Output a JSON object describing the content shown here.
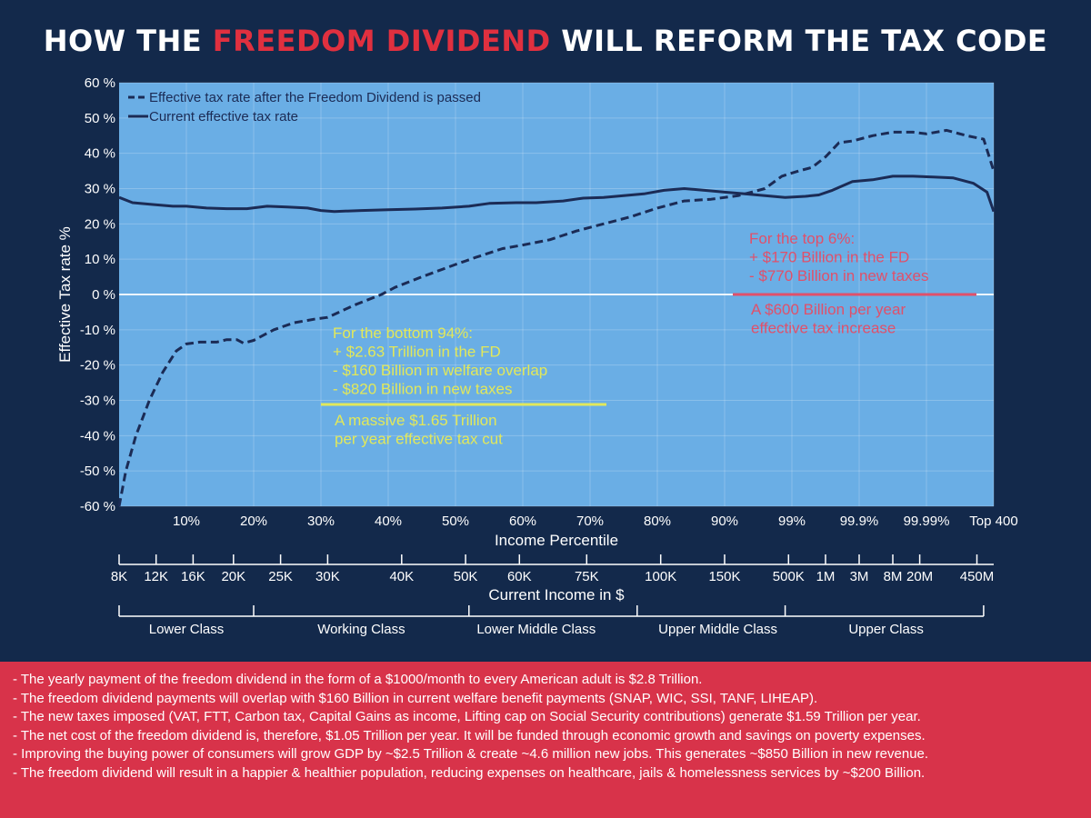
{
  "title": {
    "part1": "HOW THE ",
    "highlight": "FREEDOM DIVIDEND",
    "part2": " WILL REFORM THE TAX CODE"
  },
  "colors": {
    "background": "#13294b",
    "plot_bg": "#6aaee5",
    "line": "#1b2b55",
    "highlight": "#e0303f",
    "annotation_yellow": "#e2e85a",
    "annotation_pink": "#e0506a",
    "notes_bg": "#d8334a"
  },
  "chart_data": {
    "type": "line",
    "ylabel": "Effective Tax rate %",
    "xlabel": "Income Percentile",
    "ylim": [
      -60,
      60
    ],
    "y_ticks": [
      "60 %",
      "50 %",
      "40 %",
      "30 %",
      "20 %",
      "10 %",
      "0 %",
      "-10 %",
      "-20 %",
      "-30 %",
      "-40 %",
      "-50 %",
      "-60 %"
    ],
    "x_ticks": [
      "10%",
      "20%",
      "30%",
      "40%",
      "50%",
      "60%",
      "70%",
      "80%",
      "90%",
      "99%",
      "99.9%",
      "99.99%",
      "Top 400"
    ],
    "x_tick_positions": [
      1,
      2,
      3,
      4,
      5,
      6,
      7,
      8,
      9,
      10,
      11,
      12,
      13
    ],
    "xlim": [
      0,
      13
    ],
    "grid": true,
    "legend": {
      "position": "top-left",
      "entries": [
        "Effective tax rate after the Freedom Dividend is passed",
        "Current effective tax rate"
      ]
    },
    "series": [
      {
        "name": "Effective tax rate after the Freedom Dividend is passed",
        "style": "dashed",
        "x": [
          0,
          0.1,
          0.25,
          0.45,
          0.65,
          0.85,
          1.0,
          1.2,
          1.45,
          1.6,
          1.75,
          1.85,
          2.0,
          2.3,
          2.6,
          2.9,
          3.1,
          3.5,
          3.9,
          4.1,
          4.5,
          5.0,
          5.3,
          5.7,
          6.0,
          6.4,
          6.8,
          7.0,
          7.3,
          7.6,
          8.0,
          8.4,
          8.8,
          9.2,
          9.6,
          9.85,
          10.1,
          10.3,
          10.5,
          10.7,
          10.9,
          11.2,
          11.5,
          11.8,
          12.0,
          12.3,
          12.6,
          12.85,
          13.0
        ],
        "y": [
          -60,
          -50,
          -40,
          -30,
          -22,
          -16,
          -14,
          -13.5,
          -13.5,
          -12.8,
          -12.8,
          -13.8,
          -13,
          -10,
          -8,
          -7,
          -6.5,
          -3,
          0,
          2,
          5,
          8.5,
          10.5,
          13,
          14,
          15.5,
          18,
          19,
          20.5,
          22,
          24.5,
          26.5,
          27,
          28,
          30,
          33.5,
          35,
          36,
          39,
          43,
          43.5,
          45,
          46,
          46,
          45.5,
          46.5,
          45,
          44,
          35
        ]
      },
      {
        "name": "Current effective tax rate",
        "style": "solid",
        "x": [
          0,
          0.2,
          0.5,
          0.8,
          1.0,
          1.3,
          1.6,
          1.9,
          2.2,
          2.5,
          2.8,
          3.0,
          3.2,
          3.6,
          4.0,
          4.4,
          4.8,
          5.2,
          5.5,
          5.9,
          6.2,
          6.6,
          6.9,
          7.2,
          7.5,
          7.8,
          8.1,
          8.4,
          8.7,
          9.0,
          9.3,
          9.6,
          9.9,
          10.2,
          10.4,
          10.6,
          10.9,
          11.2,
          11.5,
          11.8,
          12.1,
          12.4,
          12.7,
          12.9,
          13.0
        ],
        "y": [
          27.5,
          26,
          25.5,
          25,
          25,
          24.5,
          24.3,
          24.3,
          25,
          24.8,
          24.5,
          23.8,
          23.5,
          23.8,
          24,
          24.2,
          24.5,
          25,
          25.8,
          26,
          26,
          26.5,
          27.3,
          27.5,
          28,
          28.5,
          29.5,
          30,
          29.5,
          29,
          28.5,
          28,
          27.5,
          27.8,
          28.2,
          29.5,
          32,
          32.5,
          33.5,
          33.5,
          33.3,
          33,
          31.5,
          29,
          23.5
        ]
      }
    ]
  },
  "income_axis": {
    "label": "Current Income in $",
    "ticks": [
      "8K",
      "12K",
      "16K",
      "20K",
      "25K",
      "30K",
      "40K",
      "50K",
      "60K",
      "75K",
      "100K",
      "150K",
      "500K",
      "1M",
      "3M",
      "8M",
      "20M",
      "450M"
    ],
    "positions": [
      0,
      0.55,
      1.1,
      1.7,
      2.4,
      3.1,
      4.2,
      5.15,
      5.95,
      6.95,
      8.05,
      9.0,
      9.95,
      10.5,
      11.0,
      11.5,
      11.9,
      12.75
    ]
  },
  "class_axis": {
    "labels": [
      "Lower Class",
      "Working Class",
      "Lower Middle Class",
      "Upper Middle Class",
      "Upper Class"
    ],
    "label_positions": [
      1.0,
      3.6,
      6.2,
      8.9,
      11.4
    ],
    "boundaries": [
      0,
      2.0,
      5.2,
      7.7,
      9.9,
      12.85
    ]
  },
  "annotations": {
    "bottom": {
      "lines": [
        "For the bottom 94%:",
        "+ $2.63 Trillion in the FD",
        "- $160 Billion in welfare overlap",
        "- $820 Billion in new taxes"
      ],
      "result": [
        "A massive $1.65 Trillion",
        "per year effective tax cut"
      ]
    },
    "top": {
      "lines": [
        "For the top 6%:",
        "+ $170 Billion in the FD",
        "- $770 Billion in new taxes"
      ],
      "result": [
        "A $600 Billion per year",
        "effective tax increase"
      ]
    }
  },
  "notes": [
    "- The yearly payment of the freedom dividend in the form of a $1000/month to every American adult is $2.8 Trillion.",
    "- The freedom dividend payments will overlap with $160 Billion in current welfare benefit payments (SNAP, WIC, SSI, TANF, LIHEAP).",
    "- The new taxes imposed (VAT, FTT, Carbon tax, Capital Gains as income, Lifting cap on Social Security contributions) generate $1.59 Trillion per year.",
    "- The net cost of the freedom dividend is, therefore, $1.05 Trillion per year. It will be funded through economic growth and savings on poverty expenses.",
    "- Improving the buying power of consumers will grow GDP by ~$2.5 Trillion & create ~4.6 million new jobs. This generates ~$850 Billion in new revenue.",
    "- The freedom dividend will result in a happier & healthier population, reducing expenses on healthcare, jails & homelessness services by ~$200 Billion."
  ]
}
